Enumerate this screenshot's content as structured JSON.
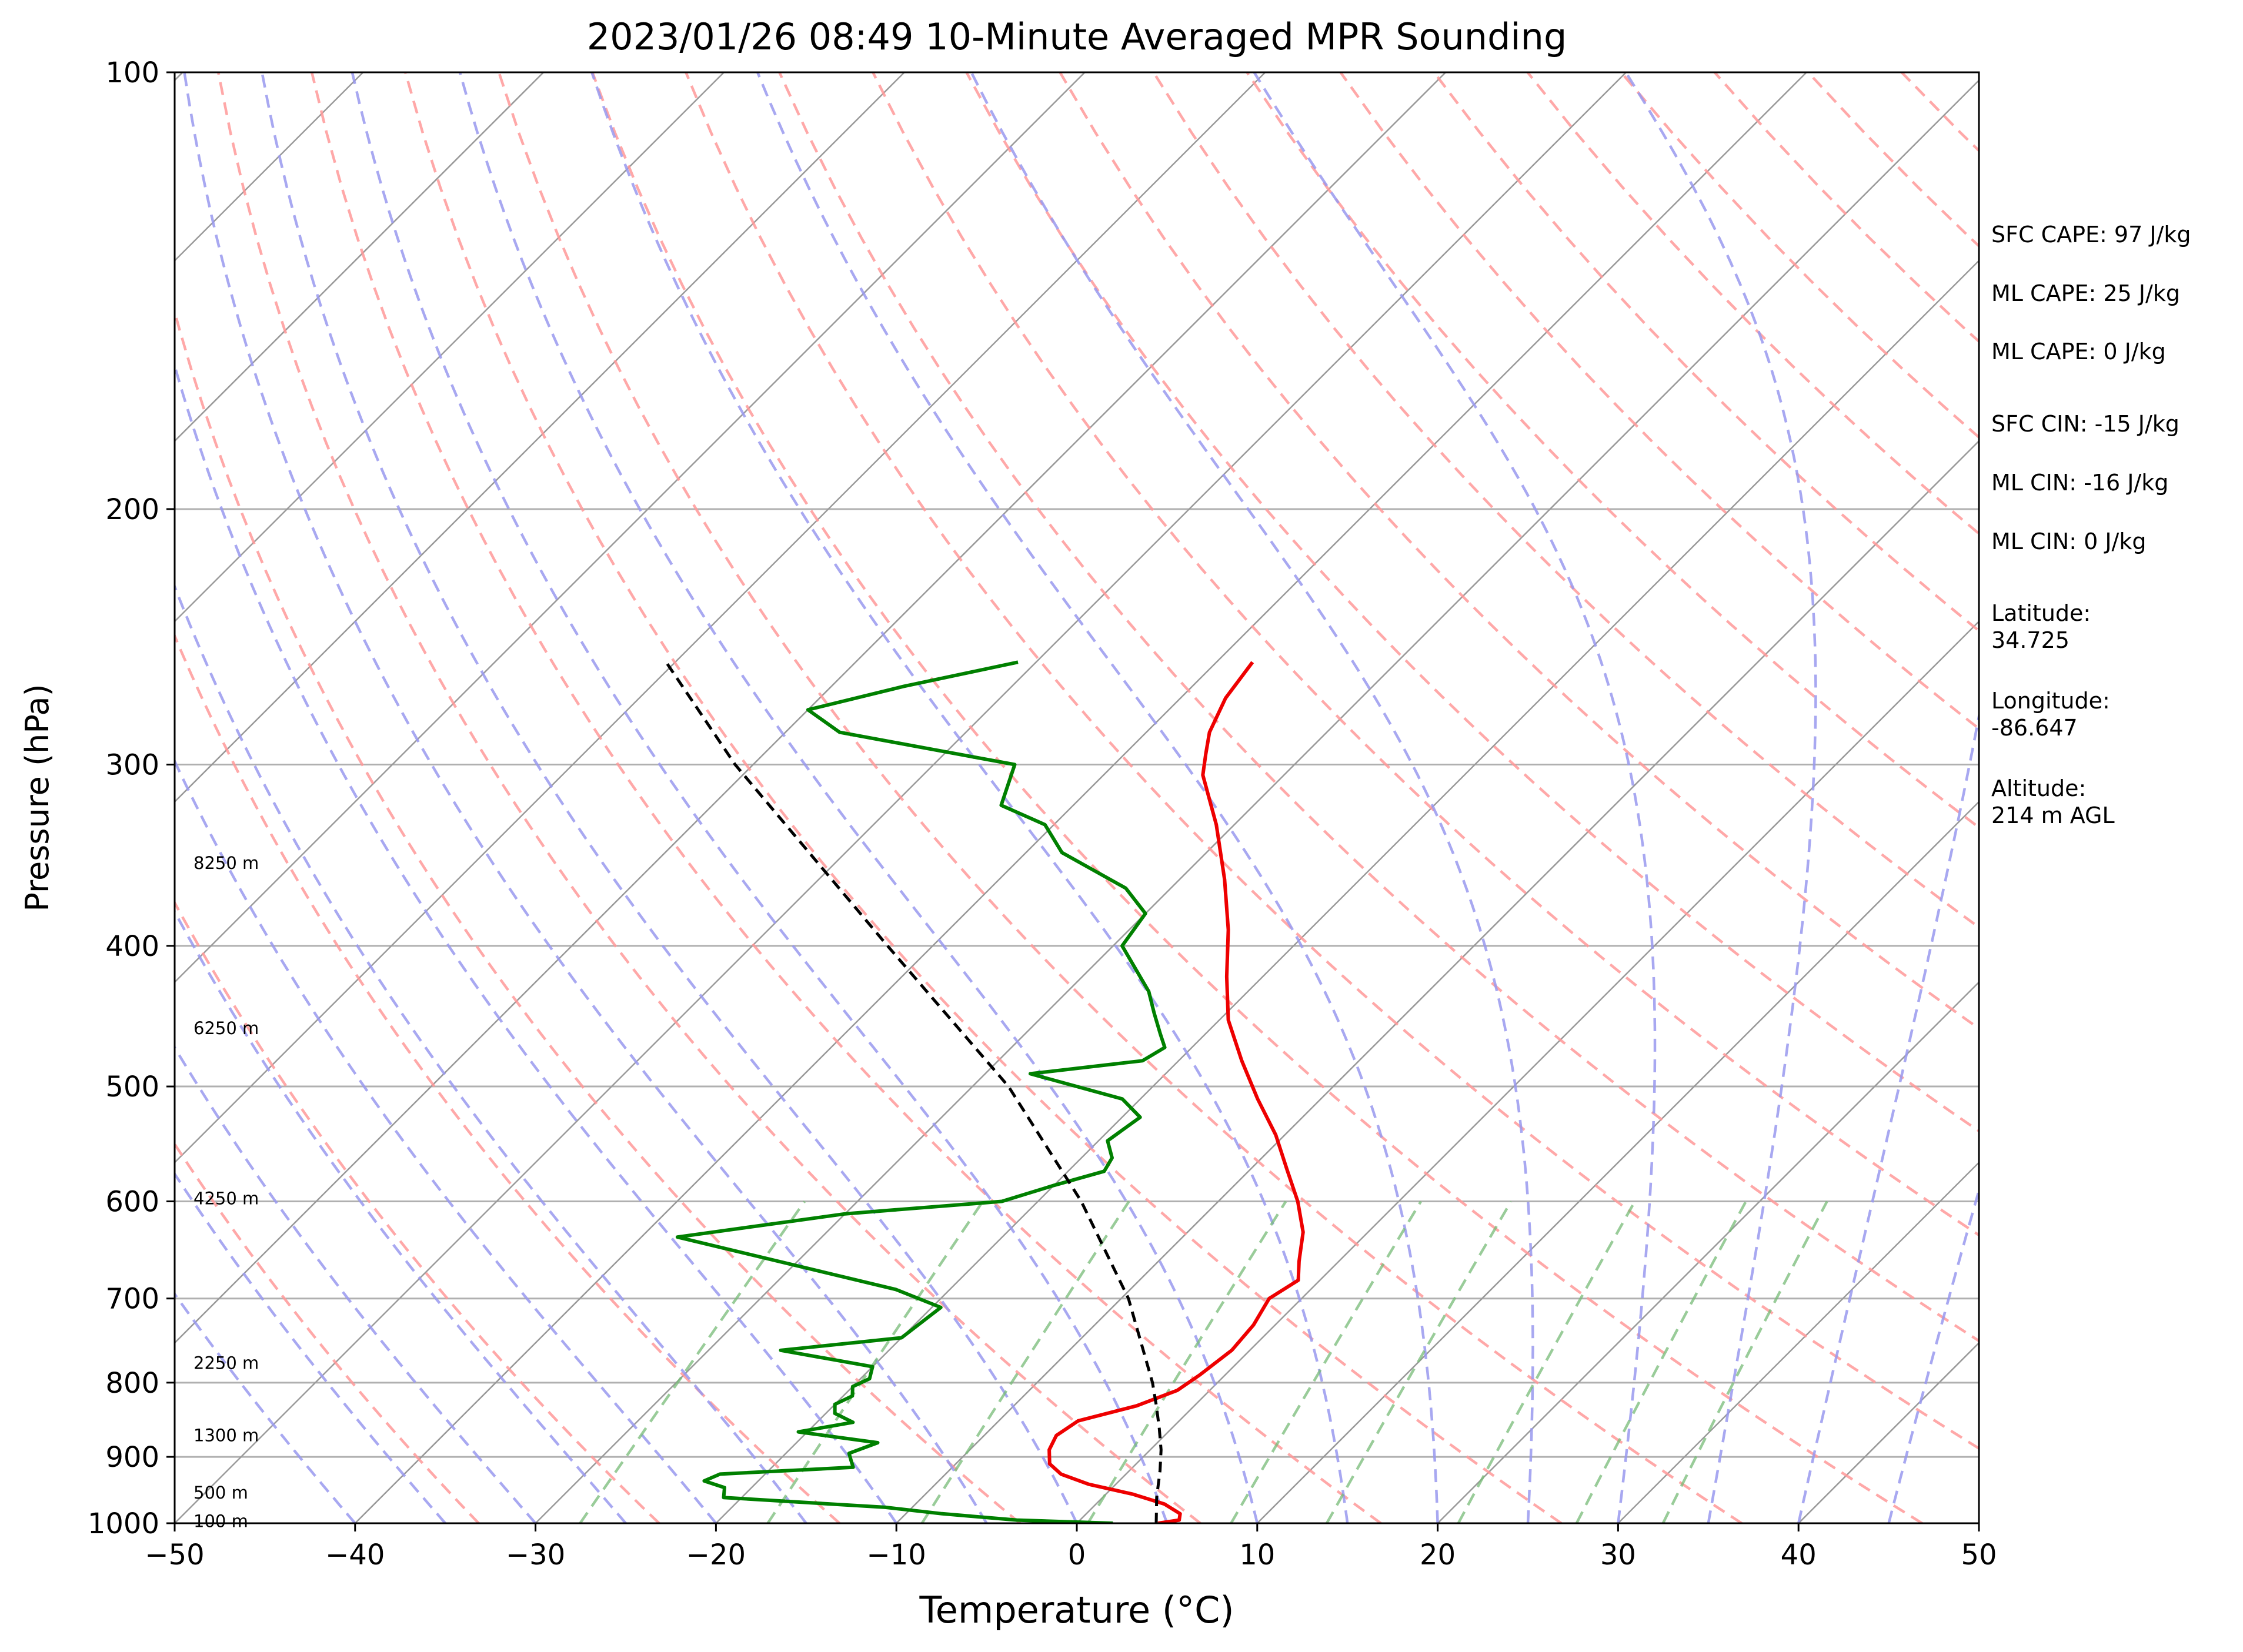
{
  "chart_data": {
    "type": "line",
    "title": "2023/01/26 08:49 10-Minute Averaged MPR Sounding",
    "xlabel": "Temperature (°C)",
    "ylabel": "Pressure (hPa)",
    "xlim": [
      -50,
      50
    ],
    "ylim": [
      1000,
      100
    ],
    "y_scale": "log",
    "skew": true,
    "grid": true,
    "x_ticks": [
      "−50",
      "−40",
      "−30",
      "−20",
      "−10",
      "0",
      "10",
      "20",
      "30",
      "40",
      "50"
    ],
    "x_tick_values": [
      -50,
      -40,
      -30,
      -20,
      -10,
      0,
      10,
      20,
      30,
      40,
      50
    ],
    "y_ticks": [
      "100",
      "200",
      "300",
      "400",
      "500",
      "600",
      "700",
      "800",
      "900",
      "1000"
    ],
    "y_tick_values": [
      100,
      200,
      300,
      400,
      500,
      600,
      700,
      800,
      900,
      1000
    ],
    "height_labels": [
      {
        "text": "8250 m",
        "p": 350
      },
      {
        "text": "6250 m",
        "p": 455
      },
      {
        "text": "4250 m",
        "p": 596
      },
      {
        "text": "2250 m",
        "p": 774
      },
      {
        "text": "1300 m",
        "p": 868
      },
      {
        "text": "500 m",
        "p": 951
      },
      {
        "text": "100 m",
        "p": 995
      }
    ],
    "series": [
      {
        "role": "temperature",
        "color": "#ee0000",
        "points": [
          {
            "p": 1000,
            "t": 4.5
          },
          {
            "p": 995,
            "t": 5.5
          },
          {
            "p": 985,
            "t": 5.2
          },
          {
            "p": 970,
            "t": 3.8
          },
          {
            "p": 955,
            "t": 1.5
          },
          {
            "p": 940,
            "t": -1.5
          },
          {
            "p": 925,
            "t": -3.6
          },
          {
            "p": 910,
            "t": -4.8
          },
          {
            "p": 890,
            "t": -5.6
          },
          {
            "p": 870,
            "t": -6.0
          },
          {
            "p": 850,
            "t": -5.6
          },
          {
            "p": 830,
            "t": -3.2
          },
          {
            "p": 810,
            "t": -1.8
          },
          {
            "p": 790,
            "t": -1.4
          },
          {
            "p": 760,
            "t": -1.0
          },
          {
            "p": 730,
            "t": -1.2
          },
          {
            "p": 700,
            "t": -1.8
          },
          {
            "p": 680,
            "t": -1.2
          },
          {
            "p": 660,
            "t": -2.2
          },
          {
            "p": 630,
            "t": -3.6
          },
          {
            "p": 600,
            "t": -5.6
          },
          {
            "p": 570,
            "t": -8.0
          },
          {
            "p": 540,
            "t": -10.5
          },
          {
            "p": 510,
            "t": -13.5
          },
          {
            "p": 480,
            "t": -16.5
          },
          {
            "p": 450,
            "t": -19.5
          },
          {
            "p": 420,
            "t": -22.0
          },
          {
            "p": 390,
            "t": -24.5
          },
          {
            "p": 360,
            "t": -27.5
          },
          {
            "p": 330,
            "t": -31.0
          },
          {
            "p": 305,
            "t": -34.5
          },
          {
            "p": 295,
            "t": -35.5
          },
          {
            "p": 285,
            "t": -36.5
          },
          {
            "p": 270,
            "t": -37.5
          },
          {
            "p": 255,
            "t": -38.0
          }
        ]
      },
      {
        "role": "dewpoint",
        "color": "#008000",
        "points": [
          {
            "p": 1000,
            "t": 2.0
          },
          {
            "p": 995,
            "t": -3.5
          },
          {
            "p": 985,
            "t": -8.0
          },
          {
            "p": 975,
            "t": -11.5
          },
          {
            "p": 960,
            "t": -21.0
          },
          {
            "p": 945,
            "t": -21.5
          },
          {
            "p": 935,
            "t": -23.0
          },
          {
            "p": 925,
            "t": -22.5
          },
          {
            "p": 915,
            "t": -15.5
          },
          {
            "p": 905,
            "t": -16.0
          },
          {
            "p": 895,
            "t": -16.5
          },
          {
            "p": 880,
            "t": -15.5
          },
          {
            "p": 865,
            "t": -20.5
          },
          {
            "p": 852,
            "t": -18.0
          },
          {
            "p": 840,
            "t": -19.5
          },
          {
            "p": 828,
            "t": -20.0
          },
          {
            "p": 817,
            "t": -19.5
          },
          {
            "p": 805,
            "t": -20.0
          },
          {
            "p": 795,
            "t": -19.5
          },
          {
            "p": 780,
            "t": -20.0
          },
          {
            "p": 760,
            "t": -26.0
          },
          {
            "p": 745,
            "t": -20.0
          },
          {
            "p": 710,
            "t": -19.5
          },
          {
            "p": 690,
            "t": -23.0
          },
          {
            "p": 635,
            "t": -38.0
          },
          {
            "p": 612,
            "t": -30.0
          },
          {
            "p": 600,
            "t": -22.0
          },
          {
            "p": 585,
            "t": -20.0
          },
          {
            "p": 572,
            "t": -18.0
          },
          {
            "p": 560,
            "t": -18.3
          },
          {
            "p": 545,
            "t": -19.5
          },
          {
            "p": 525,
            "t": -19.0
          },
          {
            "p": 510,
            "t": -21.0
          },
          {
            "p": 490,
            "t": -27.5
          },
          {
            "p": 480,
            "t": -22.0
          },
          {
            "p": 470,
            "t": -21.5
          },
          {
            "p": 460,
            "t": -22.5
          },
          {
            "p": 445,
            "t": -24.0
          },
          {
            "p": 430,
            "t": -25.5
          },
          {
            "p": 400,
            "t": -29.5
          },
          {
            "p": 380,
            "t": -30.0
          },
          {
            "p": 365,
            "t": -32.5
          },
          {
            "p": 345,
            "t": -38.0
          },
          {
            "p": 330,
            "t": -40.5
          },
          {
            "p": 320,
            "t": -44.0
          },
          {
            "p": 300,
            "t": -45.5
          },
          {
            "p": 285,
            "t": -57.0
          },
          {
            "p": 275,
            "t": -60.0
          },
          {
            "p": 265,
            "t": -56.0
          },
          {
            "p": 255,
            "t": -51.0
          }
        ]
      },
      {
        "role": "parcel",
        "color": "#000000",
        "dashed": true,
        "points": [
          {
            "p": 1000,
            "t": 4.4
          },
          {
            "p": 960,
            "t": 3.0
          },
          {
            "p": 920,
            "t": 1.7
          },
          {
            "p": 890,
            "t": 0.6
          },
          {
            "p": 860,
            "t": -0.7
          },
          {
            "p": 830,
            "t": -2.1
          },
          {
            "p": 800,
            "t": -3.6
          },
          {
            "p": 700,
            "t": -9.6
          },
          {
            "p": 600,
            "t": -17.6
          },
          {
            "p": 500,
            "t": -28.0
          },
          {
            "p": 400,
            "t": -42.5
          },
          {
            "p": 300,
            "t": -61.0
          },
          {
            "p": 255,
            "t": -70.5
          }
        ]
      }
    ],
    "annotations": [
      "SFC CAPE: 97 J/kg",
      "ML CAPE: 25 J/kg",
      "ML CAPE: 0 J/kg",
      "SFC CIN: -15 J/kg",
      "ML CIN: -16 J/kg",
      "ML CIN: 0 J/kg",
      "Latitude:",
      "34.725",
      "Longitude:",
      "-86.647",
      "Altitude:",
      "214 m AGL"
    ],
    "colors": {
      "temperature": "#ee0000",
      "dewpoint": "#008000",
      "parcel": "#000000",
      "dry_adiabats": "#ff9999",
      "moist_adiabats": "#9999ee",
      "mixing_ratio": "#77bb77",
      "isotherms": "#999999",
      "grid": "#b0b0b0"
    }
  }
}
